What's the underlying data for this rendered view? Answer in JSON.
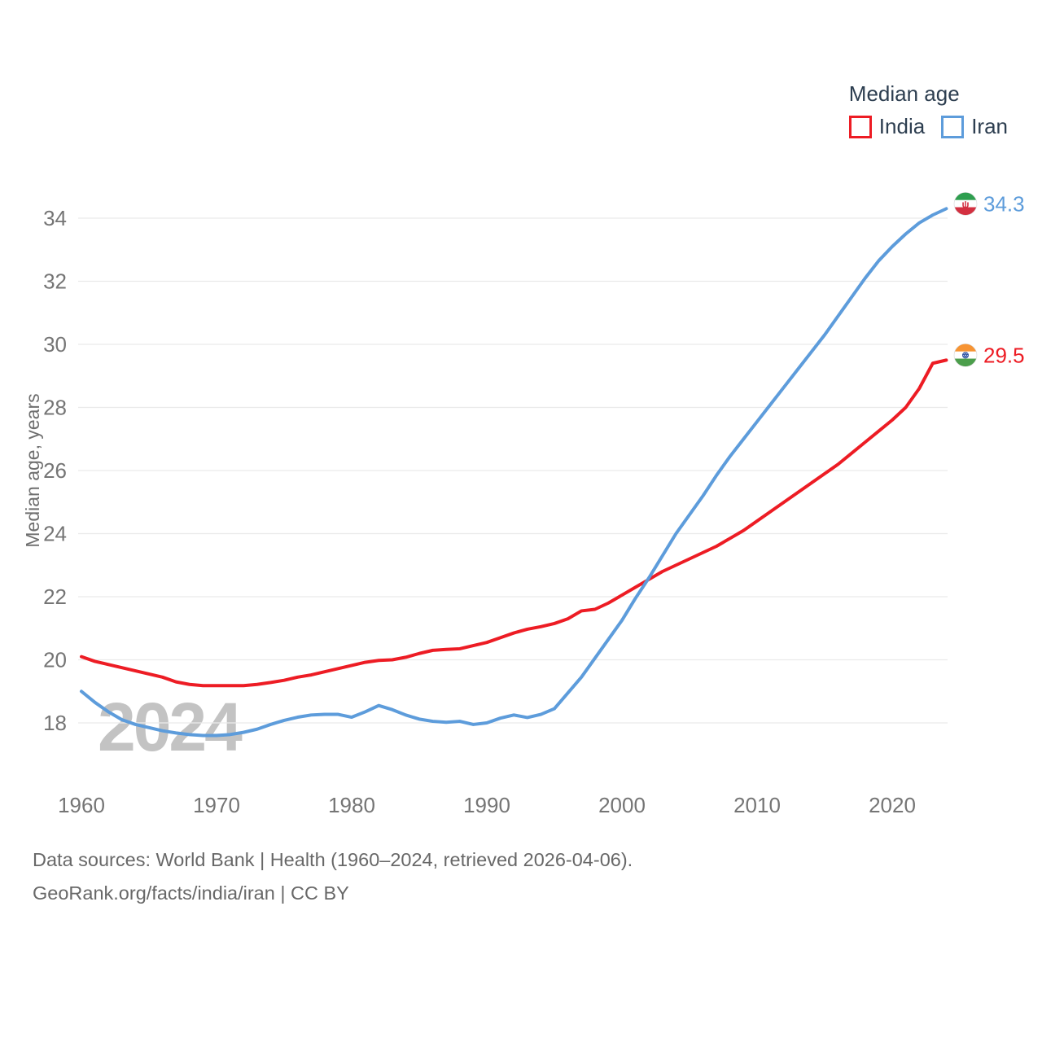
{
  "legend": {
    "title": "Median age",
    "items": [
      {
        "label": "India",
        "color": "#ed1c24"
      },
      {
        "label": "Iran",
        "color": "#5d9cdb"
      }
    ]
  },
  "watermark": "2024",
  "footer": {
    "line1": "Data sources: World Bank | Health (1960–2024, retrieved 2026-04-06).",
    "line2": "GeoRank.org/facts/india/iran | CC BY"
  },
  "colors": {
    "grid": "#eaeaea",
    "tick_text": "#757575",
    "axis_title_text": "#6f6f6f",
    "legend_text": "#2d3e50",
    "watermark": "#c3c3c3",
    "india_line": "#ed1c24",
    "iran_line": "#5d9cdb"
  },
  "icons": {
    "iran_flag": {
      "name": "iran-flag-icon",
      "green": "#2e9e4f",
      "white": "#ffffff",
      "red": "#d codice"
    },
    "india_flag": {
      "name": "india-flag-icon",
      "saffron": "#f79433",
      "white": "#ffffff",
      "green": "#4b9e4b",
      "chakra": "#2a4fa2"
    }
  },
  "chart_data": {
    "type": "line",
    "title": "Median age",
    "xlabel": "",
    "ylabel": "Median age, years",
    "grid": "horizontal",
    "legend_position": "top-right",
    "xlim": [
      1960,
      2024
    ],
    "ylim": [
      17.3,
      35.2
    ],
    "x_ticks": [
      1960,
      1970,
      1980,
      1990,
      2000,
      2010,
      2020
    ],
    "y_ticks": [
      18,
      20,
      22,
      24,
      26,
      28,
      30,
      32,
      34
    ],
    "x": [
      1960,
      1961,
      1962,
      1963,
      1964,
      1965,
      1966,
      1967,
      1968,
      1969,
      1970,
      1971,
      1972,
      1973,
      1974,
      1975,
      1976,
      1977,
      1978,
      1979,
      1980,
      1981,
      1982,
      1983,
      1984,
      1985,
      1986,
      1987,
      1988,
      1989,
      1990,
      1991,
      1992,
      1993,
      1994,
      1995,
      1996,
      1997,
      1998,
      1999,
      2000,
      2001,
      2002,
      2003,
      2004,
      2005,
      2006,
      2007,
      2008,
      2009,
      2010,
      2011,
      2012,
      2013,
      2014,
      2015,
      2016,
      2017,
      2018,
      2019,
      2020,
      2021,
      2022,
      2023,
      2024
    ],
    "series": [
      {
        "name": "India",
        "color": "#ed1c24",
        "end_label": "29.5",
        "end_value": 29.5,
        "flag": "india",
        "values": [
          20.1,
          19.95,
          19.85,
          19.75,
          19.65,
          19.55,
          19.45,
          19.3,
          19.22,
          19.18,
          19.18,
          19.18,
          19.18,
          19.22,
          19.28,
          19.35,
          19.45,
          19.52,
          19.62,
          19.72,
          19.82,
          19.92,
          19.98,
          20.0,
          20.08,
          20.2,
          20.3,
          20.33,
          20.35,
          20.45,
          20.55,
          20.7,
          20.85,
          20.97,
          21.05,
          21.15,
          21.3,
          21.55,
          21.6,
          21.8,
          22.05,
          22.3,
          22.55,
          22.8,
          23.0,
          23.2,
          23.4,
          23.6,
          23.85,
          24.1,
          24.4,
          24.7,
          25.0,
          25.3,
          25.6,
          25.9,
          26.2,
          26.55,
          26.9,
          27.25,
          27.6,
          28.0,
          28.6,
          29.4,
          29.5
        ]
      },
      {
        "name": "Iran",
        "color": "#5d9cdb",
        "end_label": "34.3",
        "end_value": 34.3,
        "flag": "iran",
        "values": [
          19.0,
          18.65,
          18.35,
          18.1,
          17.95,
          17.85,
          17.75,
          17.68,
          17.63,
          17.6,
          17.6,
          17.63,
          17.7,
          17.8,
          17.95,
          18.08,
          18.18,
          18.25,
          18.27,
          18.27,
          18.18,
          18.35,
          18.55,
          18.42,
          18.25,
          18.12,
          18.05,
          18.02,
          18.05,
          17.95,
          18.0,
          18.15,
          18.25,
          18.17,
          18.27,
          18.45,
          18.95,
          19.45,
          20.05,
          20.65,
          21.25,
          21.95,
          22.6,
          23.3,
          24.0,
          24.6,
          25.2,
          25.85,
          26.45,
          27.0,
          27.55,
          28.1,
          28.65,
          29.2,
          29.75,
          30.3,
          30.9,
          31.5,
          32.1,
          32.65,
          33.1,
          33.5,
          33.85,
          34.1,
          34.3
        ]
      }
    ]
  }
}
